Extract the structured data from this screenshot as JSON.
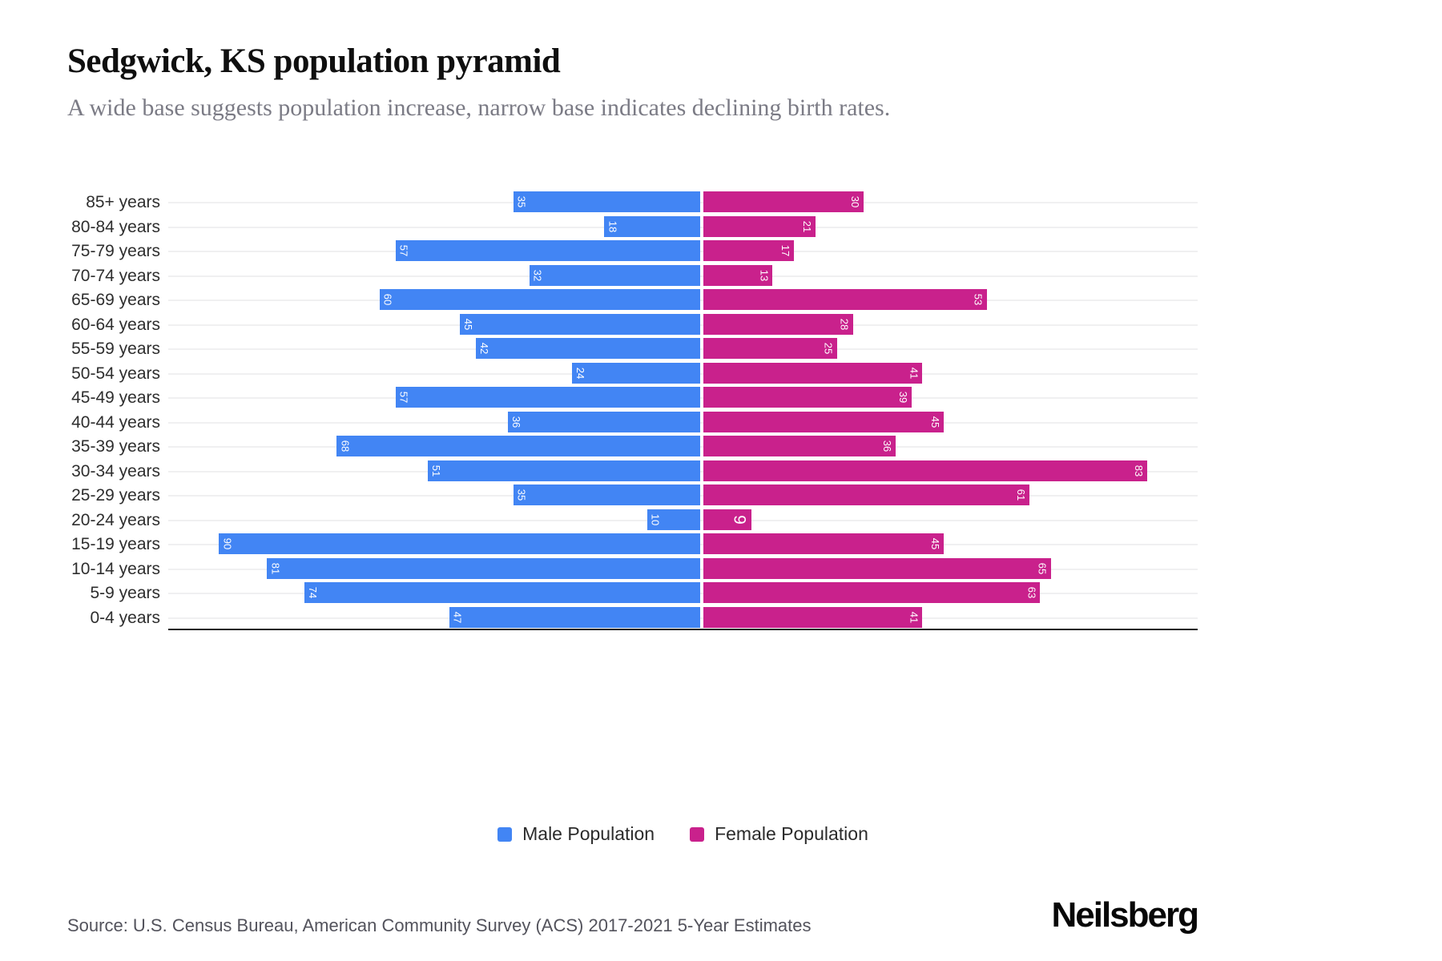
{
  "header": {
    "title": "Sedgwick, KS population pyramid",
    "subtitle": "A wide base suggests population increase, narrow base indicates declining birth rates."
  },
  "chart_data": {
    "type": "bar",
    "variant": "population-pyramid",
    "orientation": "horizontal",
    "title": "Sedgwick, KS population pyramid",
    "categories": [
      "85+ years",
      "80-84 years",
      "75-79 years",
      "70-74 years",
      "65-69 years",
      "60-64 years",
      "55-59 years",
      "50-54 years",
      "45-49 years",
      "40-44 years",
      "35-39 years",
      "30-34 years",
      "25-29 years",
      "20-24 years",
      "15-19 years",
      "10-14 years",
      "5-9 years",
      "0-4 years"
    ],
    "series": [
      {
        "name": "Male Population",
        "side": "left",
        "color": "#4285F4",
        "values": [
          35,
          18,
          57,
          32,
          60,
          45,
          42,
          24,
          57,
          36,
          68,
          51,
          35,
          10,
          90,
          81,
          74,
          47
        ]
      },
      {
        "name": "Female Population",
        "side": "right",
        "color": "#C9218C",
        "values": [
          30,
          21,
          17,
          13,
          53,
          28,
          25,
          41,
          39,
          45,
          36,
          83,
          61,
          9,
          45,
          65,
          63,
          41
        ]
      }
    ],
    "value_labels": "inside-outer-end, rotated 90deg, white",
    "x_ticks_visible": false,
    "xlim_left_max": 100,
    "xlim_right_max": 93,
    "grid": true,
    "gridline_color": "#f0f0f1",
    "axis_line_color": "#1c1c1c",
    "legend_position": "bottom"
  },
  "legend": {
    "male_label": "Male Population",
    "female_label": "Female Population"
  },
  "footer": {
    "source": "Source: U.S. Census Bureau, American Community Survey (ACS) 2017-2021 5-Year Estimates",
    "brand": "Neilsberg"
  }
}
